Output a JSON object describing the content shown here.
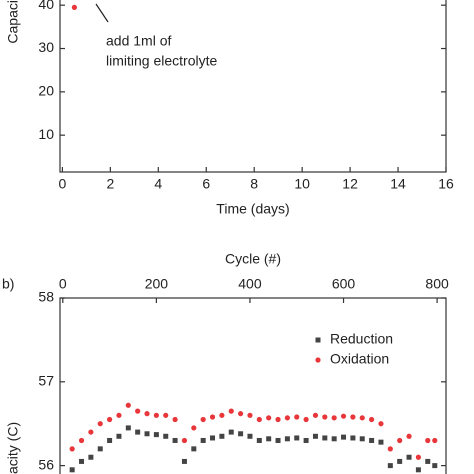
{
  "chart_data": [
    {
      "type": "scatter",
      "ylabel": "Capaci",
      "xlabel": "Time (days)",
      "xlim": [
        -0.1,
        16
      ],
      "xticks": [
        0,
        2,
        4,
        6,
        8,
        10,
        12,
        14,
        16
      ],
      "ylim": [
        1.5,
        41.2
      ],
      "yticks": [
        10,
        20,
        30,
        40
      ],
      "series": [
        {
          "name": null,
          "color": "#e8363a",
          "x": [
            0.5
          ],
          "values": [
            39.5
          ]
        }
      ],
      "annotation": [
        "add 1ml of",
        "limiting electrolyte"
      ]
    },
    {
      "type": "scatter",
      "panel_label": "b)",
      "ylabel": "acity (C)",
      "xlabel": "Cycle (#)",
      "xlim": [
        -6,
        819
      ],
      "xticks": [
        0,
        200,
        400,
        600,
        800
      ],
      "ylim": [
        55.9,
        58
      ],
      "yticks": [
        56,
        57,
        58
      ],
      "legend": "upper right",
      "series": [
        {
          "name": "Reduction",
          "color": "#444444",
          "x": [
            20,
            40,
            60,
            80,
            100,
            120,
            140,
            160,
            180,
            200,
            220,
            240,
            260,
            280,
            300,
            320,
            340,
            360,
            380,
            400,
            420,
            440,
            460,
            480,
            500,
            520,
            540,
            560,
            580,
            600,
            620,
            640,
            660,
            680,
            700,
            720,
            740,
            760,
            780,
            795
          ],
          "values": [
            55.95,
            56.05,
            56.1,
            56.2,
            56.3,
            56.35,
            56.45,
            56.4,
            56.38,
            56.37,
            56.35,
            56.3,
            56.05,
            56.2,
            56.3,
            56.33,
            56.35,
            56.4,
            56.38,
            56.35,
            56.3,
            56.32,
            56.3,
            56.32,
            56.33,
            56.3,
            56.35,
            56.33,
            56.32,
            56.34,
            56.33,
            56.32,
            56.3,
            56.28,
            56.0,
            56.05,
            56.1,
            55.95,
            56.05,
            56.0
          ]
        },
        {
          "name": "Oxidation",
          "color": "#e8363a",
          "x": [
            20,
            40,
            60,
            80,
            100,
            120,
            140,
            160,
            180,
            200,
            220,
            240,
            260,
            280,
            300,
            320,
            340,
            360,
            380,
            400,
            420,
            440,
            460,
            480,
            500,
            520,
            540,
            560,
            580,
            600,
            620,
            640,
            660,
            680,
            700,
            720,
            740,
            760,
            780,
            795
          ],
          "values": [
            56.2,
            56.3,
            56.4,
            56.5,
            56.55,
            56.6,
            56.72,
            56.65,
            56.62,
            56.6,
            56.6,
            56.55,
            56.3,
            56.45,
            56.55,
            56.58,
            56.6,
            56.65,
            56.62,
            56.6,
            56.55,
            56.57,
            56.55,
            56.57,
            56.58,
            56.55,
            56.6,
            56.58,
            56.57,
            56.59,
            56.58,
            56.57,
            56.55,
            56.5,
            56.2,
            56.3,
            56.35,
            56.1,
            56.3,
            56.3
          ]
        }
      ]
    }
  ]
}
